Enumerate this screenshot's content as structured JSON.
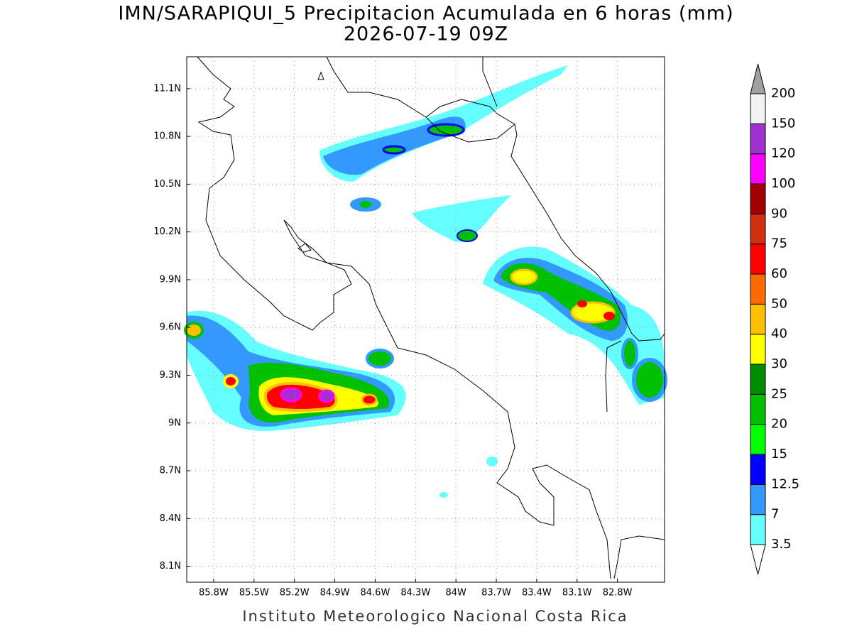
{
  "title": "IMN/SARAPIQUI_5 Precipitacion Acumulada en 6 horas (mm)",
  "subtitle": "2026-07-19 09Z",
  "footer": "Instituto Meteorologico Nacional Costa Rica",
  "map": {
    "xlim": [
      -86.0,
      -82.45
    ],
    "ylim": [
      8.0,
      11.3
    ],
    "lon_ticks": [
      {
        "value": -85.8,
        "label": "85.8W"
      },
      {
        "value": -85.5,
        "label": "85.5W"
      },
      {
        "value": -85.2,
        "label": "85.2W"
      },
      {
        "value": -84.9,
        "label": "84.9W"
      },
      {
        "value": -84.6,
        "label": "84.6W"
      },
      {
        "value": -84.3,
        "label": "84.3W"
      },
      {
        "value": -84.0,
        "label": "84W"
      },
      {
        "value": -83.7,
        "label": "83.7W"
      },
      {
        "value": -83.4,
        "label": "83.4W"
      },
      {
        "value": -83.1,
        "label": "83.1W"
      },
      {
        "value": -82.8,
        "label": "82.8W"
      }
    ],
    "lat_ticks": [
      {
        "value": 11.1,
        "label": "11.1N"
      },
      {
        "value": 10.8,
        "label": "10.8N"
      },
      {
        "value": 10.5,
        "label": "10.5N"
      },
      {
        "value": 10.2,
        "label": "10.2N"
      },
      {
        "value": 9.9,
        "label": "9.9N"
      },
      {
        "value": 9.6,
        "label": "9.6N"
      },
      {
        "value": 9.3,
        "label": "9.3N"
      },
      {
        "value": 9.0,
        "label": "9N"
      },
      {
        "value": 8.7,
        "label": "8.7N"
      },
      {
        "value": 8.4,
        "label": "8.4N"
      },
      {
        "value": 8.1,
        "label": "8.1N"
      }
    ],
    "grid": true
  },
  "colorbar": {
    "levels": [
      3.5,
      7,
      12.5,
      15,
      20,
      25,
      30,
      40,
      50,
      60,
      75,
      90,
      100,
      120,
      150,
      200
    ],
    "colors": [
      "#66ffff",
      "#3399ff",
      "#0000ff",
      "#00ff00",
      "#00c000",
      "#008c00",
      "#ffff00",
      "#ffc000",
      "#ff6a00",
      "#ff0000",
      "#d03010",
      "#a00000",
      "#ff00ff",
      "#a030d0",
      "#f2f2f2"
    ],
    "under_color": "#ffffff",
    "over_color": "#a0a0a0"
  }
}
